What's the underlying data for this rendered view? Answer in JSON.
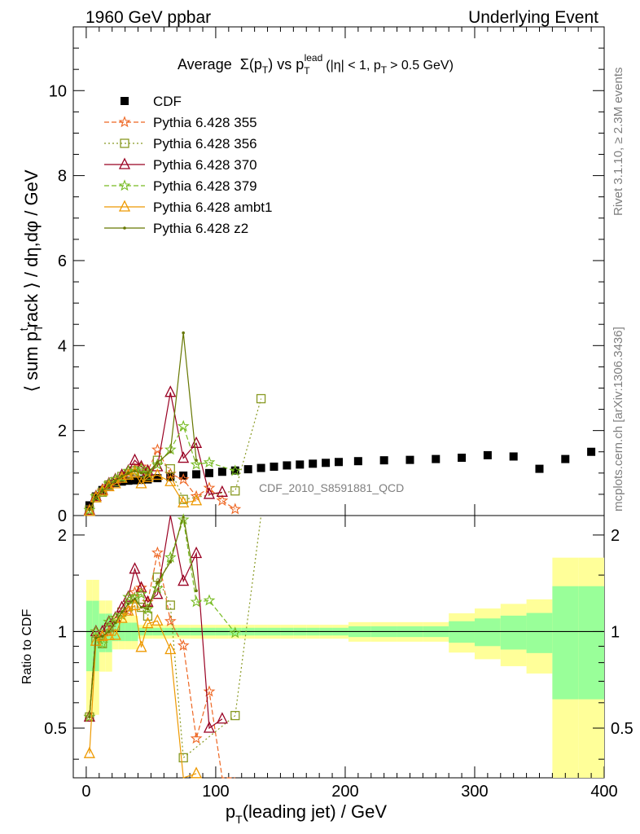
{
  "header": {
    "left": "1960 GeV ppbar",
    "right": "Underlying Event"
  },
  "side_labels": {
    "top": "Rivet 3.1.10, ≥ 2.3M events",
    "bottom": "mcplots.cern.ch [arXiv:1306.3436]"
  },
  "watermark": "CDF_2010_S8591881_QCD",
  "title": {
    "prefix": "Average",
    "sigma": "Σ(p",
    "t_sub": "T",
    "vs": ") vs p",
    "lead_sub": "T",
    "lead_sup": "lead",
    "cuts": "(|η| < 1, p",
    "cuts_sub": "T",
    "cuts_end": "> 0.5 GeV)"
  },
  "axes": {
    "ylabel_main": "⟨ sum pₜᵗrack ⟩ / dη,dφ / GeV",
    "ylabel_main_parts": {
      "a": "⟨ sum p",
      "sub": "T",
      "sup": "t",
      "b": "rack ⟩ / dη,dφ / GeV"
    },
    "ylabel_ratio": "Ratio to CDF",
    "xlabel_parts": {
      "a": "p",
      "sub": "T",
      "b": "(leading jet) / GeV"
    }
  },
  "colors": {
    "cdf": "#000000",
    "p355": "#ee6622",
    "p356": "#889922",
    "p370": "#990022",
    "p379": "#77bb22",
    "ambt1": "#ee9900",
    "z2": "#667700",
    "band_inner": "#99ff99",
    "band_outer": "#ffff99"
  },
  "chart_data": {
    "type": "scatter",
    "xlim": [
      -10,
      400
    ],
    "ylim_main": [
      0,
      11.5
    ],
    "ylim_ratio": [
      0.35,
      2.3
    ],
    "x_ticks": [
      0,
      100,
      200,
      300,
      400
    ],
    "y_ticks_main": [
      0,
      2,
      4,
      6,
      8,
      10
    ],
    "y_ticks_ratio": [
      0.5,
      1,
      2
    ],
    "legend_position": "top-left",
    "series": [
      {
        "name": "CDF",
        "key": "cdf",
        "marker": "square",
        "x": [
          2.5,
          7.5,
          12.5,
          17.5,
          22.5,
          27.5,
          32.5,
          37.5,
          42.5,
          47.5,
          55,
          65,
          75,
          85,
          95,
          105,
          115,
          125,
          135,
          145,
          155,
          165,
          175,
          185,
          195,
          210,
          230,
          250,
          270,
          290,
          310,
          330,
          350,
          370,
          390
        ],
        "y": [
          0.24,
          0.45,
          0.6,
          0.7,
          0.77,
          0.8,
          0.82,
          0.83,
          0.84,
          0.85,
          0.88,
          0.91,
          0.94,
          0.97,
          1.0,
          1.03,
          1.06,
          1.09,
          1.12,
          1.15,
          1.18,
          1.2,
          1.22,
          1.24,
          1.26,
          1.28,
          1.3,
          1.31,
          1.33,
          1.36,
          1.42,
          1.39,
          1.1,
          1.33,
          1.5
        ]
      },
      {
        "name": "Pythia 6.428 355",
        "key": "p355",
        "marker": "star",
        "dash": "6,3",
        "x": [
          2.5,
          7.5,
          12.5,
          17.5,
          22.5,
          27.5,
          32.5,
          37.5,
          42.5,
          47.5,
          55,
          65,
          75,
          85,
          95,
          105,
          115
        ],
        "y": [
          0.13,
          0.45,
          0.58,
          0.7,
          0.85,
          0.9,
          0.95,
          1.1,
          1.15,
          1.05,
          1.55,
          0.98,
          0.85,
          0.45,
          0.65,
          0.35,
          0.15
        ]
      },
      {
        "name": "Pythia 6.428 356",
        "key": "p356",
        "marker": "square_open",
        "dash": "2,3",
        "x": [
          2.5,
          7.5,
          12.5,
          17.5,
          22.5,
          27.5,
          32.5,
          37.5,
          42.5,
          47.5,
          55,
          65,
          75,
          115,
          135
        ],
        "y": [
          0.13,
          0.42,
          0.55,
          0.72,
          0.8,
          0.92,
          0.98,
          1.05,
          1.0,
          0.95,
          1.3,
          1.1,
          0.38,
          0.58,
          2.75
        ]
      },
      {
        "name": "Pythia 6.428 370",
        "key": "p370",
        "marker": "triangle_open",
        "x": [
          2.5,
          7.5,
          12.5,
          17.5,
          22.5,
          27.5,
          32.5,
          37.5,
          42.5,
          47.5,
          55,
          65,
          75,
          85,
          95,
          105
        ],
        "y": [
          0.13,
          0.45,
          0.6,
          0.75,
          0.85,
          0.95,
          1.05,
          1.3,
          1.15,
          1.05,
          1.15,
          2.9,
          1.35,
          1.7,
          0.5,
          0.55
        ]
      },
      {
        "name": "Pythia 6.428 379",
        "key": "p379",
        "marker": "star",
        "dash": "6,3",
        "x": [
          2.5,
          7.5,
          12.5,
          17.5,
          22.5,
          27.5,
          32.5,
          37.5,
          42.5,
          47.5,
          55,
          65,
          75,
          85,
          95,
          115
        ],
        "y": [
          0.13,
          0.45,
          0.55,
          0.75,
          0.85,
          0.9,
          1.05,
          1.05,
          1.1,
          1.0,
          1.2,
          1.55,
          2.1,
          1.2,
          1.25,
          1.05
        ]
      },
      {
        "name": "Pythia 6.428 ambt1",
        "key": "ambt1",
        "marker": "triangle_open",
        "x": [
          2.5,
          7.5,
          12.5,
          17.5,
          22.5,
          27.5,
          32.5,
          37.5,
          42.5,
          47.5,
          55,
          65,
          75,
          85
        ],
        "y": [
          0.1,
          0.42,
          0.58,
          0.68,
          0.75,
          0.88,
          0.95,
          1.0,
          0.75,
          0.9,
          0.95,
          0.8,
          0.3,
          0.35
        ]
      },
      {
        "name": "Pythia 6.428 z2",
        "key": "z2",
        "marker": "dot",
        "x": [
          2.5,
          7.5,
          12.5,
          17.5,
          22.5,
          27.5,
          32.5,
          37.5,
          42.5,
          47.5,
          55,
          65,
          75,
          85
        ],
        "y": [
          0.13,
          0.43,
          0.58,
          0.7,
          0.82,
          0.92,
          1.0,
          1.05,
          1.0,
          1.0,
          1.25,
          1.5,
          4.3,
          1.3
        ]
      }
    ]
  }
}
